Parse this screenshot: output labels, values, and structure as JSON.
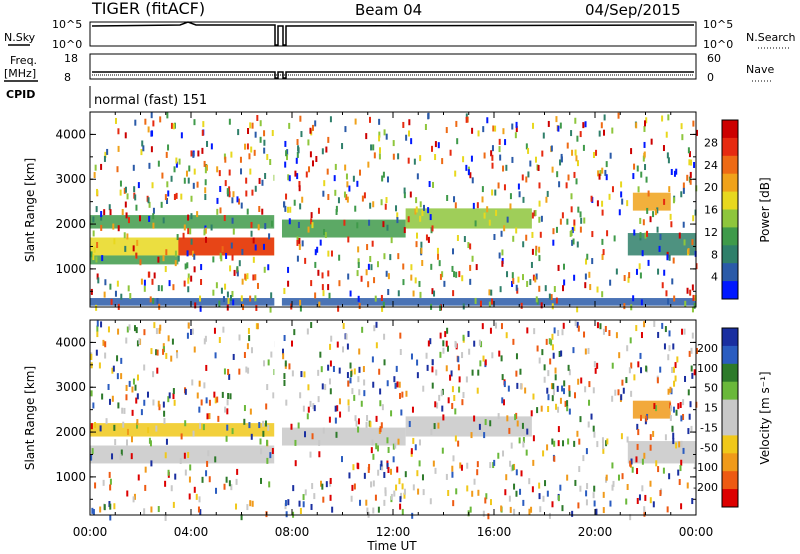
{
  "header": {
    "radar": "TIGER (fitACF)",
    "beam": "Beam 04",
    "date": "04/Sep/2015"
  },
  "aux": {
    "nsky_label": "N.Sky",
    "nsky_ticks": [
      "10^5",
      "10^0"
    ],
    "nsearch_label": "N.Search",
    "nsearch_ticks": [
      "10^5",
      "10^0"
    ],
    "freq_label_1": "Freq.",
    "freq_label_2": "[MHz]",
    "freq_ticks": [
      "18",
      "8"
    ],
    "nave_label": "Nave",
    "nave_ticks": [
      "60",
      "0"
    ],
    "cpid_label": "CPID",
    "cpid_value": "normal (fast) 151"
  },
  "colors": {
    "power_scale": [
      "#0018ff",
      "#2a5aa8",
      "#2f7f6a",
      "#3f9a4a",
      "#8ec63c",
      "#e8d81e",
      "#f0a21a",
      "#ee6a14",
      "#e62a10",
      "#cc0000"
    ],
    "velocity_scale": [
      "#1a2fa0",
      "#2a5cc0",
      "#2d7a2a",
      "#6ab83a",
      "#c8c8c8",
      "#c8c8c8",
      "#f0c81a",
      "#f09a1a",
      "#ee5a12",
      "#dd0000"
    ]
  },
  "chart_data": [
    {
      "type": "heatmap",
      "name": "power",
      "ylabel": "Slant Range [km]",
      "y_ticks": [
        "4000",
        "3000",
        "2000",
        "1000"
      ],
      "ylim": [
        150,
        4500
      ],
      "x_ticks": [
        "00:00",
        "04:00",
        "08:00",
        "12:00",
        "16:00",
        "20:00",
        "00:00"
      ],
      "xlim_hours": [
        0,
        24
      ],
      "colorbar": {
        "label": "Power [dB]",
        "ticks": [
          "28",
          "24",
          "20",
          "16",
          "12",
          "8",
          "4"
        ],
        "range": [
          0,
          32
        ]
      },
      "echo_regions": [
        {
          "t": [
            0.0,
            7.3
          ],
          "r": [
            1900,
            2200
          ],
          "v": 12
        },
        {
          "t": [
            0.0,
            7.3
          ],
          "r": [
            1300,
            1700
          ],
          "v": 18
        },
        {
          "t": [
            3.5,
            7.3
          ],
          "r": [
            1300,
            1700
          ],
          "v": 26
        },
        {
          "t": [
            0.0,
            3.5
          ],
          "r": [
            1100,
            1300
          ],
          "v": 10
        },
        {
          "t": [
            7.6,
            12.5
          ],
          "r": [
            1700,
            2100
          ],
          "v": 10
        },
        {
          "t": [
            12.5,
            17.5
          ],
          "r": [
            1900,
            2350
          ],
          "v": 13
        },
        {
          "t": [
            21.3,
            24.0
          ],
          "r": [
            1300,
            1800
          ],
          "v": 8
        },
        {
          "t": [
            21.5,
            23.0
          ],
          "r": [
            2300,
            2700
          ],
          "v": 22
        },
        {
          "t": [
            0.0,
            24.0
          ],
          "r": [
            180,
            350
          ],
          "v": 6
        }
      ]
    },
    {
      "type": "heatmap",
      "name": "velocity",
      "ylabel": "Slant Range [km]",
      "y_ticks": [
        "4000",
        "3000",
        "2000",
        "1000"
      ],
      "ylim": [
        150,
        4500
      ],
      "x_ticks": [
        "00:00",
        "04:00",
        "08:00",
        "12:00",
        "16:00",
        "20:00",
        "00:00"
      ],
      "xlabel": "Time UT",
      "xlim_hours": [
        0,
        24
      ],
      "colorbar": {
        "label": "Velocity [m s⁻¹]",
        "ticks": [
          "200",
          "100",
          "50",
          "15",
          "-15",
          "-50",
          "-100",
          "-200"
        ],
        "range": [
          -250,
          250
        ]
      },
      "echo_regions": [
        {
          "t": [
            0.0,
            7.3
          ],
          "r": [
            1300,
            1700
          ],
          "v": 0
        },
        {
          "t": [
            0.0,
            7.3
          ],
          "r": [
            1900,
            2200
          ],
          "v": -60
        },
        {
          "t": [
            7.6,
            12.5
          ],
          "r": [
            1700,
            2100
          ],
          "v": 0
        },
        {
          "t": [
            12.5,
            17.5
          ],
          "r": [
            1900,
            2350
          ],
          "v": 0
        },
        {
          "t": [
            21.5,
            23.0
          ],
          "r": [
            2300,
            2700
          ],
          "v": -150
        },
        {
          "t": [
            21.3,
            24.0
          ],
          "r": [
            1300,
            1800
          ],
          "v": 0
        }
      ]
    }
  ]
}
